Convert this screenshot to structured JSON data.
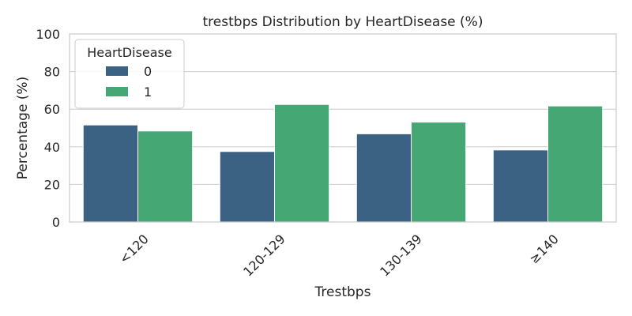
{
  "chart_data": {
    "type": "bar",
    "title": "trestbps Distribution by HeartDisease (%)",
    "xlabel": "Trestbps",
    "ylabel": "Percentage (%)",
    "categories": [
      "<120",
      "120-129",
      "130-139",
      "≥140"
    ],
    "ylim": [
      0,
      100
    ],
    "yticks": [
      0,
      20,
      40,
      60,
      80,
      100
    ],
    "grid": true,
    "legend": {
      "title": "HeartDisease",
      "position": "top-left"
    },
    "series": [
      {
        "name": "0",
        "color": "#3b6283",
        "values": [
          51.6,
          37.5,
          46.9,
          38.3
        ]
      },
      {
        "name": "1",
        "color": "#44a774",
        "values": [
          48.4,
          62.5,
          53.1,
          61.7
        ]
      }
    ]
  }
}
